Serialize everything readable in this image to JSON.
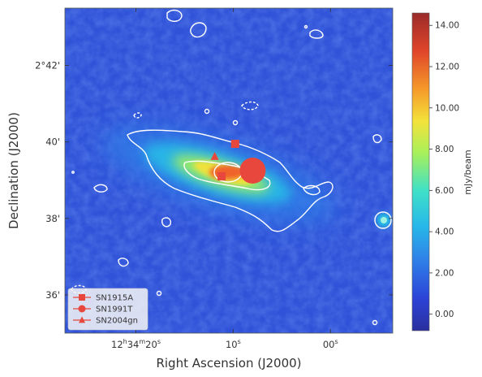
{
  "chart_data": {
    "type": "heatmap",
    "xlabel": "Right Ascension (J2000)",
    "ylabel": "Declination (J2000)",
    "colorbar_label": "mJy/beam",
    "colorbar_range": [
      -0.8,
      14.6
    ],
    "colorbar_ticks": [
      "0.00",
      "2.00",
      "4.00",
      "6.00",
      "8.00",
      "10.00",
      "12.00",
      "14.00"
    ],
    "colorbar_tick_values": [
      0,
      2,
      4,
      6,
      8,
      10,
      12,
      14
    ],
    "x_ticks": [
      {
        "label_parts": [
          "12",
          "h",
          "34",
          "m",
          "20",
          "s"
        ],
        "value_s": 20
      },
      {
        "label_parts": [
          "10",
          "s"
        ],
        "value_s": 10
      },
      {
        "label_parts": [
          "00",
          "s"
        ],
        "value_s": 0
      }
    ],
    "y_ticks": [
      {
        "label": "2°42'",
        "value_arcmin": 42
      },
      {
        "label": "40'",
        "value_arcmin": 40
      },
      {
        "label": "38'",
        "value_arcmin": 38
      },
      {
        "label": "36'",
        "value_arcmin": 36
      }
    ],
    "x_range_s": [
      27.3,
      -6.4
    ],
    "y_range_arcmin": [
      35.0,
      43.5
    ],
    "grid": false,
    "legend_position": "bottom-left",
    "colormap": "jet",
    "supernovae": [
      {
        "name": "SN1915A",
        "marker": "square",
        "color": "#e8473d",
        "points": [
          {
            "ra_s": 9.8,
            "dec_arcmin": 39.95
          },
          {
            "ra_s": 11.2,
            "dec_arcmin": 39.1
          }
        ]
      },
      {
        "name": "SN1991T",
        "marker": "circle",
        "color": "#e8473d",
        "points": [
          {
            "ra_s": 8.0,
            "dec_arcmin": 39.25
          }
        ]
      },
      {
        "name": "SN2004gn",
        "marker": "triangle",
        "color": "#e8473d",
        "points": [
          {
            "ra_s": 11.9,
            "dec_arcmin": 39.62
          }
        ]
      }
    ]
  }
}
